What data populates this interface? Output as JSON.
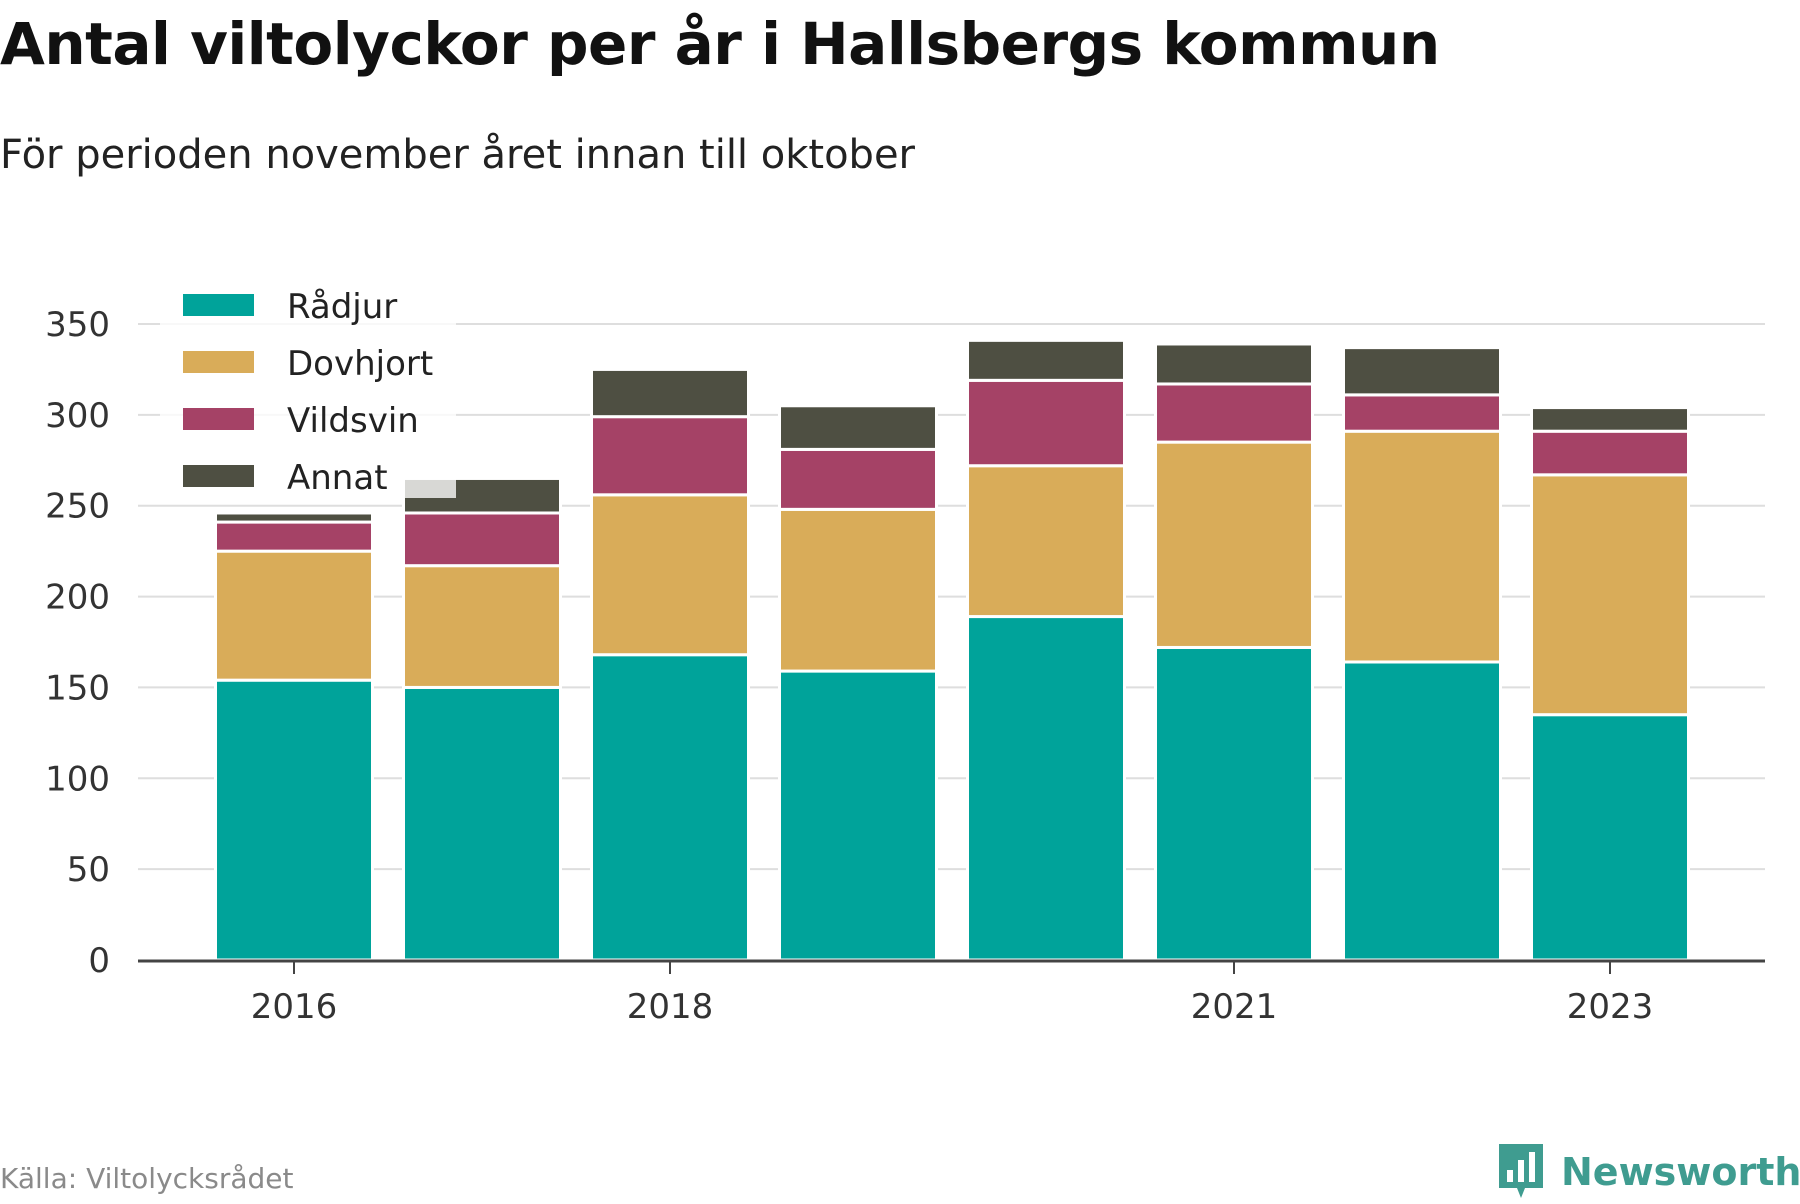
{
  "title": "Antal viltolyckor per år i Hallsbergs kommun",
  "subtitle": "För perioden november året innan till oktober",
  "source": "Källa: Viltolycksrådet",
  "brand": "Newsworthy",
  "colors": {
    "radjur": "#00a39a",
    "dovhjort": "#d9ac59",
    "vildsvin": "#a54266",
    "annat": "#4e4f42",
    "grid": "#dedede",
    "axis": "#444444",
    "brand": "#3f9c90"
  },
  "chart_data": {
    "type": "bar",
    "stacked": true,
    "categories": [
      "2016",
      "2017",
      "2018",
      "2019",
      "2020",
      "2021",
      "2022",
      "2023"
    ],
    "x_tick_labels": [
      "2016",
      "",
      "2018",
      "",
      "",
      "2021",
      "",
      "2023"
    ],
    "series": [
      {
        "name": "Rådjur",
        "color": "#00a39a",
        "values": [
          154,
          150,
          168,
          159,
          189,
          172,
          164,
          135
        ]
      },
      {
        "name": "Dovhjort",
        "color": "#d9ac59",
        "values": [
          71,
          67,
          88,
          89,
          83,
          113,
          127,
          132
        ]
      },
      {
        "name": "Vildsvin",
        "color": "#a54266",
        "values": [
          16,
          29,
          43,
          33,
          47,
          32,
          20,
          24
        ]
      },
      {
        "name": "Annat",
        "color": "#4e4f42",
        "values": [
          5,
          19,
          26,
          24,
          22,
          22,
          26,
          13
        ]
      }
    ],
    "ylim": [
      0,
      350
    ],
    "yticks": [
      0,
      50,
      100,
      150,
      200,
      250,
      300,
      350
    ],
    "grid": true,
    "legend_position": "top-left",
    "xlabel": "",
    "ylabel": ""
  }
}
